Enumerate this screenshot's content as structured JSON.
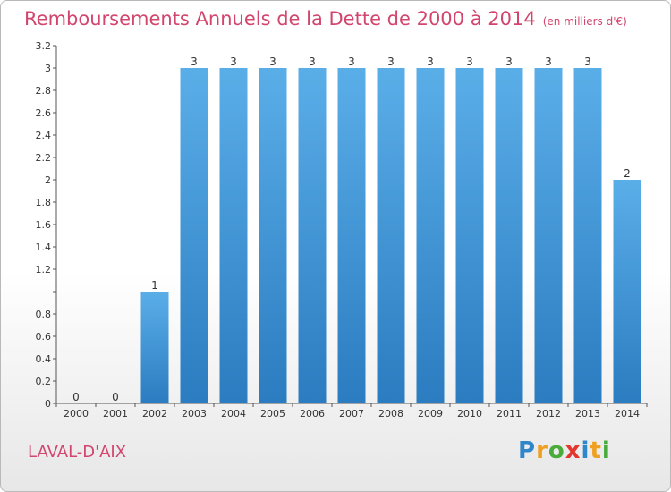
{
  "header": {
    "title": "Remboursements Annuels de la Dette de 2000 à 2014",
    "unit": "(en milliers d'€)"
  },
  "footer": {
    "commune": "LAVAL-D'AIX",
    "logo_letters": [
      "P",
      "r",
      "o",
      "x",
      "i",
      "t",
      "i"
    ],
    "logo_colors": [
      "#2f86c9",
      "#f0a020",
      "#4aab3c",
      "#e5362d",
      "#2f86c9",
      "#f0a020",
      "#4aab3c"
    ]
  },
  "chart_data": {
    "type": "bar",
    "categories": [
      "2000",
      "2001",
      "2002",
      "2003",
      "2004",
      "2005",
      "2006",
      "2007",
      "2008",
      "2009",
      "2010",
      "2011",
      "2012",
      "2013",
      "2014"
    ],
    "values": [
      0,
      0,
      1,
      3,
      3,
      3,
      3,
      3,
      3,
      3,
      3,
      3,
      3,
      3,
      2
    ],
    "data_labels": [
      "0",
      "0",
      "1",
      "3",
      "3",
      "3",
      "3",
      "3",
      "3",
      "3",
      "3",
      "3",
      "3",
      "3",
      "2"
    ],
    "ylim": [
      0,
      3.2
    ],
    "y_ticks": [
      0,
      0.2,
      0.4,
      0.6,
      0.8,
      1,
      1.2,
      1.4,
      1.6,
      1.8,
      2,
      2.2,
      2.4,
      2.6,
      2.8,
      3,
      3.2
    ],
    "y_tick_labels": [
      "0",
      "0.2",
      "0.4",
      "0.6",
      "0.8",
      "",
      "1.2",
      "1.4",
      "1.6",
      "1.8",
      "2",
      "2.2",
      "2.4",
      "2.6",
      "2.8",
      "3",
      "3.2"
    ],
    "grid": false,
    "bar_color_top": "#5aaee8",
    "bar_color_bottom": "#2b7cc0"
  }
}
